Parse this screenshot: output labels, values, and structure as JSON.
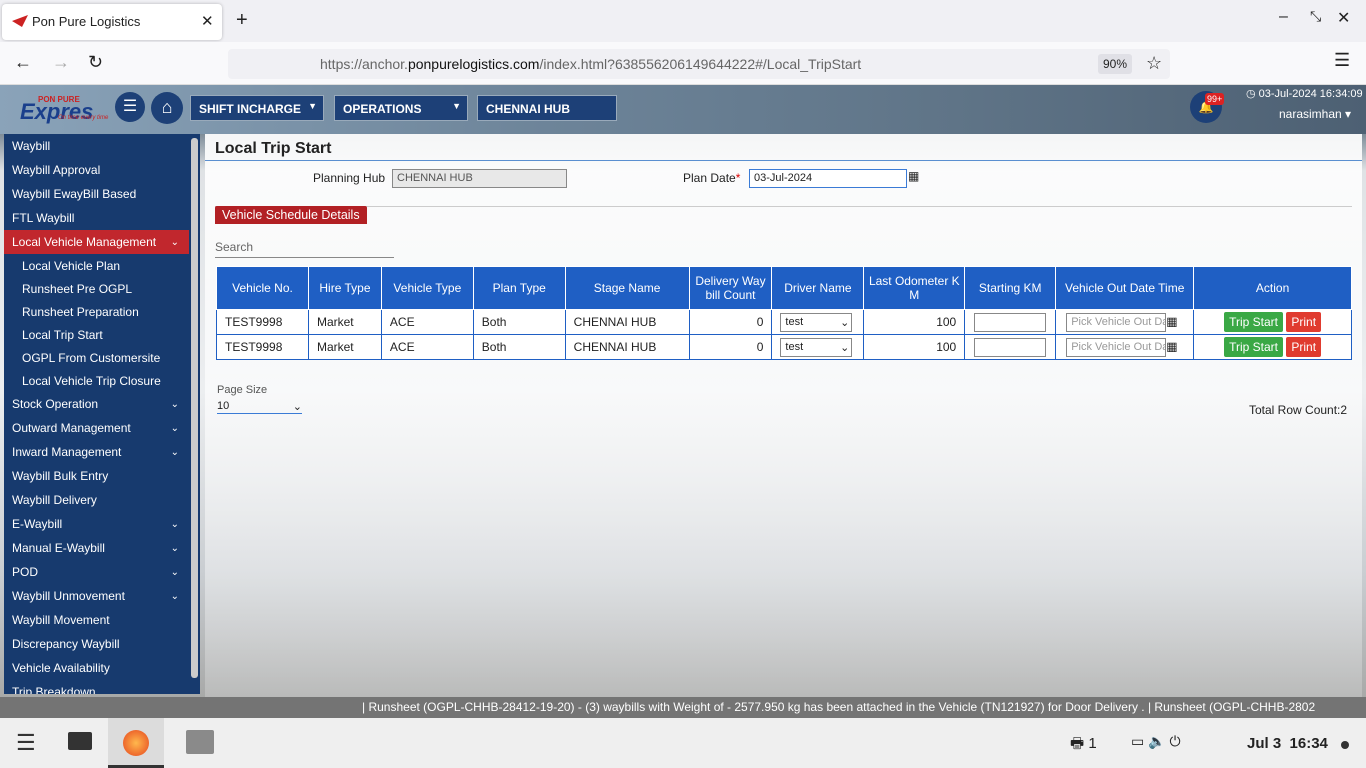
{
  "browser": {
    "tab_title": "Pon Pure Logistics",
    "url_prefix": "https://anchor.",
    "url_domain": "ponpurelogistics.com",
    "url_suffix": "/index.html?638556206149644222#/Local_TripStart",
    "zoom": "90%"
  },
  "header": {
    "logo_top": "PON PURE",
    "logo": "Expres",
    "tagline": "On time every time",
    "menus": [
      "SHIFT INCHARGE",
      "OPERATIONS",
      "CHENNAI HUB"
    ],
    "notification_badge": "99+",
    "datetime": "03-Jul-2024 16:34:09",
    "user": "narasimhan"
  },
  "sidebar": {
    "items": [
      {
        "label": "Waybill"
      },
      {
        "label": "Waybill Approval"
      },
      {
        "label": "Waybill EwayBill Based"
      },
      {
        "label": "FTL Waybill"
      },
      {
        "label": "Local Vehicle Management",
        "chevron": true,
        "active": true
      },
      {
        "label": "Local Vehicle Plan",
        "sub": true
      },
      {
        "label": "Runsheet Pre OGPL",
        "sub": true
      },
      {
        "label": "Runsheet Preparation",
        "sub": true
      },
      {
        "label": "Local Trip Start",
        "sub": true
      },
      {
        "label": "OGPL From Customersite",
        "sub": true
      },
      {
        "label": "Local Vehicle Trip Closure",
        "sub": true
      },
      {
        "label": "Stock Operation",
        "chevron": true
      },
      {
        "label": "Outward Management",
        "chevron": true
      },
      {
        "label": "Inward Management",
        "chevron": true
      },
      {
        "label": "Waybill Bulk Entry"
      },
      {
        "label": "Waybill Delivery"
      },
      {
        "label": "E-Waybill",
        "chevron": true
      },
      {
        "label": "Manual E-Waybill",
        "chevron": true
      },
      {
        "label": "POD",
        "chevron": true
      },
      {
        "label": "Waybill Unmovement",
        "chevron": true
      },
      {
        "label": "Waybill Movement"
      },
      {
        "label": "Discrepancy Waybill"
      },
      {
        "label": "Vehicle Availability"
      },
      {
        "label": "Trip Breakdown"
      }
    ]
  },
  "content": {
    "title": "Local Trip Start",
    "planning_hub_label": "Planning Hub",
    "planning_hub_value": "CHENNAI HUB",
    "plan_date_label": "Plan Date",
    "required_mark": "*",
    "plan_date_value": "03-Jul-2024",
    "section_tab": "Vehicle Schedule Details",
    "search_placeholder": "Search",
    "table": {
      "columns": [
        "Vehicle No.",
        "Hire Type",
        "Vehicle Type",
        "Plan Type",
        "Stage Name",
        "Delivery Waybill Count",
        "Driver Name",
        "Last Odometer KM",
        "Starting KM",
        "Vehicle Out Date Time",
        "Action"
      ],
      "rows": [
        [
          "TEST9998",
          "Market",
          "ACE",
          "Both",
          "CHENNAI HUB",
          0,
          "test",
          100
        ],
        [
          "TEST9998",
          "Market",
          "ACE",
          "Both",
          "CHENNAI HUB",
          0,
          "test",
          100
        ]
      ],
      "out_date_placeholder": "Pick Vehicle Out Da",
      "trip_start_button": "Trip Start",
      "print_button": "Print"
    },
    "page_size_label": "Page Size",
    "page_size": "10",
    "total_row_count": "Total Row Count:2"
  },
  "ticker": "| Runsheet (OGPL-CHHB-28412-19-20) - (3) waybills with Weight of - 2577.950 kg has been attached in the Vehicle (TN121927) for Door Delivery . | Runsheet (OGPL-CHHB-2802",
  "taskbar": {
    "print_count": "1",
    "date": "Jul 3",
    "time": "16:34"
  }
}
